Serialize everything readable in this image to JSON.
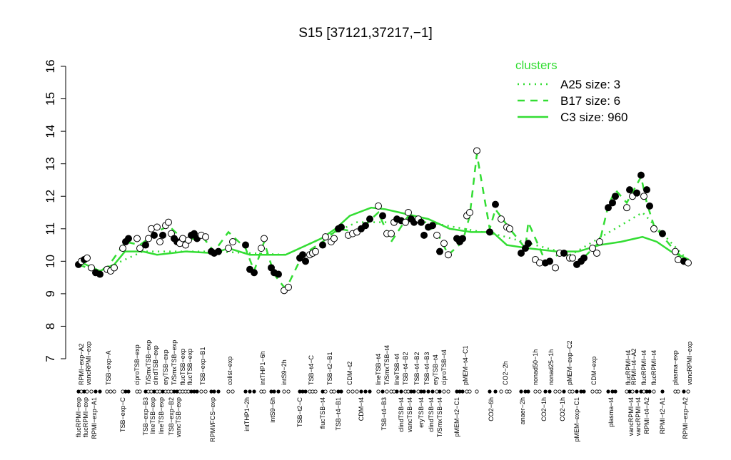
{
  "chart_data": {
    "type": "line",
    "title": "S15 [37121,37217,−1]",
    "ylim": [
      7,
      16
    ],
    "yticks": [
      7,
      8,
      9,
      10,
      11,
      12,
      13,
      14,
      15,
      16
    ],
    "xlim": [
      100,
      975
    ],
    "legend_title": "clusters",
    "legend_position": "top-right",
    "series": [
      {
        "name": "A25 size: 3",
        "color": "#33dd33",
        "dash": "dotted",
        "x": [
          110,
          140,
          200,
          300,
          400,
          500,
          600,
          700,
          800,
          900,
          965
        ],
        "values": [
          10.0,
          9.7,
          10.3,
          10.3,
          10.2,
          11.2,
          11.2,
          10.8,
          10.2,
          11.5,
          10.0
        ]
      },
      {
        "name": "B17 size: 6",
        "color": "#33dd33",
        "dash": "dashed",
        "x": [
          110,
          134,
          150,
          176,
          196,
          220,
          236,
          260,
          282,
          300,
          320,
          344,
          356,
          370,
          384,
          398,
          404,
          424,
          452,
          474,
          500,
          530,
          548,
          572,
          590,
          612,
          628,
          648,
          658,
          668,
          686,
          694,
          714,
          736,
          740,
          764,
          790,
          808,
          840,
          852,
          862,
          878,
          898,
          906,
          916,
          946,
          964
        ],
        "values": [
          9.9,
          9.7,
          9.8,
          10.6,
          10.5,
          10.9,
          11.1,
          10.6,
          10.8,
          10.3,
          10.9,
          10.4,
          9.7,
          10.6,
          9.6,
          9.2,
          9.3,
          10.2,
          10.6,
          11.0,
          10.9,
          11.5,
          10.6,
          11.4,
          11.2,
          10.9,
          10.2,
          10.6,
          11.4,
          13.3,
          11.0,
          11.6,
          11.0,
          10.4,
          11.2,
          10.0,
          10.3,
          9.9,
          10.6,
          11.7,
          12.2,
          11.8,
          12.6,
          11.8,
          11.1,
          10.3,
          10.0
        ]
      },
      {
        "name": "C3 size: 960",
        "color": "#33dd33",
        "dash": "solid",
        "x": [
          110,
          140,
          160,
          175,
          200,
          220,
          260,
          300,
          320,
          350,
          380,
          400,
          420,
          450,
          470,
          490,
          520,
          540,
          560,
          600,
          630,
          660,
          690,
          710,
          740,
          780,
          810,
          840,
          870,
          900,
          920,
          940,
          965
        ],
        "values": [
          10.0,
          9.7,
          9.9,
          10.3,
          10.3,
          10.2,
          10.3,
          10.25,
          10.4,
          10.2,
          10.2,
          10.2,
          10.4,
          10.7,
          11.0,
          11.4,
          11.65,
          11.6,
          11.5,
          11.3,
          11.0,
          10.9,
          10.9,
          10.5,
          10.4,
          10.3,
          10.3,
          10.5,
          10.6,
          10.75,
          10.6,
          10.3,
          10.05
        ]
      }
    ],
    "points": {
      "x": [
        110,
        114,
        118,
        122,
        128,
        134,
        140,
        150,
        155,
        160,
        172,
        176,
        180,
        192,
        196,
        204,
        208,
        212,
        216,
        220,
        224,
        228,
        232,
        236,
        240,
        244,
        248,
        252,
        256,
        260,
        264,
        268,
        272,
        276,
        282,
        288,
        296,
        300,
        306,
        320,
        326,
        344,
        350,
        356,
        366,
        370,
        380,
        384,
        390,
        398,
        404,
        420,
        424,
        428,
        434,
        438,
        442,
        452,
        456,
        464,
        468,
        474,
        478,
        488,
        494,
        500,
        506,
        512,
        518,
        530,
        536,
        542,
        548,
        552,
        556,
        562,
        568,
        572,
        576,
        580,
        586,
        590,
        594,
        600,
        606,
        612,
        616,
        622,
        628,
        640,
        644,
        648,
        654,
        658,
        668,
        686,
        694,
        702,
        710,
        714,
        730,
        736,
        740,
        750,
        756,
        764,
        770,
        778,
        784,
        790,
        798,
        802,
        808,
        814,
        818,
        830,
        836,
        840,
        852,
        858,
        862,
        878,
        882,
        886,
        892,
        898,
        902,
        906,
        910,
        916,
        928,
        946,
        950,
        958,
        964
      ],
      "values": [
        9.9,
        10.0,
        10.05,
        10.1,
        9.8,
        9.65,
        9.6,
        9.75,
        9.7,
        9.8,
        10.4,
        10.6,
        10.7,
        10.7,
        10.4,
        10.5,
        10.7,
        11.0,
        10.8,
        11.05,
        10.6,
        10.8,
        11.1,
        11.2,
        10.85,
        10.7,
        10.6,
        10.55,
        10.7,
        10.5,
        10.65,
        10.8,
        10.85,
        10.7,
        10.8,
        10.75,
        10.3,
        10.25,
        10.3,
        10.4,
        10.6,
        10.5,
        9.75,
        9.65,
        10.4,
        10.7,
        9.8,
        9.65,
        9.6,
        9.1,
        9.2,
        10.1,
        10.2,
        10.0,
        10.2,
        10.25,
        10.3,
        10.5,
        10.75,
        10.6,
        10.7,
        11.0,
        11.05,
        10.8,
        10.85,
        10.9,
        11.0,
        11.1,
        11.3,
        11.7,
        11.4,
        10.85,
        10.85,
        11.2,
        11.3,
        11.25,
        11.2,
        11.5,
        11.3,
        11.2,
        11.3,
        11.2,
        10.8,
        11.05,
        11.1,
        10.8,
        10.3,
        10.55,
        10.2,
        10.7,
        10.6,
        10.7,
        11.4,
        11.5,
        13.4,
        10.9,
        11.75,
        11.3,
        11.05,
        11.0,
        10.25,
        10.4,
        10.55,
        10.05,
        9.95,
        9.95,
        10.0,
        9.8,
        10.25,
        10.25,
        10.1,
        10.1,
        9.9,
        10.0,
        10.1,
        10.4,
        10.25,
        10.6,
        11.65,
        11.8,
        12.0,
        11.65,
        12.2,
        12.0,
        12.1,
        12.65,
        12.0,
        12.2,
        11.7,
        11.0,
        10.85,
        10.3,
        10.05,
        10.0,
        9.95
      ],
      "filled": [
        true,
        false,
        true,
        false,
        false,
        true,
        true,
        false,
        false,
        false,
        false,
        true,
        true,
        false,
        false,
        true,
        false,
        false,
        true,
        false,
        false,
        true,
        false,
        false,
        false,
        true,
        true,
        false,
        false,
        false,
        false,
        true,
        true,
        true,
        false,
        false,
        true,
        true,
        true,
        false,
        false,
        true,
        true,
        true,
        false,
        false,
        true,
        true,
        true,
        false,
        false,
        true,
        true,
        true,
        false,
        false,
        false,
        true,
        false,
        false,
        false,
        true,
        true,
        false,
        false,
        false,
        true,
        true,
        true,
        false,
        true,
        false,
        false,
        false,
        true,
        true,
        false,
        false,
        true,
        true,
        false,
        true,
        true,
        true,
        true,
        false,
        true,
        false,
        false,
        true,
        true,
        true,
        false,
        false,
        false,
        true,
        true,
        false,
        false,
        false,
        true,
        true,
        true,
        false,
        false,
        true,
        true,
        false,
        false,
        true,
        false,
        false,
        true,
        true,
        true,
        false,
        false,
        false,
        true,
        true,
        true,
        false,
        true,
        false,
        true,
        true,
        false,
        true,
        true,
        false,
        true,
        false,
        false,
        true,
        false
      ]
    },
    "top_labels": [
      "RPMI−exp−A2",
      "vancRPMI−exp",
      "TSB−exp−A",
      "ciproTSB−exp",
      "T/SmxTSB−exp",
      "clindTSB−exp",
      "eryTSB−exp",
      "T/SmxTSB−exp",
      "flucTSB−exp",
      "flucTSB−exp",
      "TSB−exp−B1",
      "colist−exp",
      "intTHP1−6h",
      "intS9−2h",
      "TSB−t4−C",
      "TSB−t2−B1",
      "CDM−t2",
      "lineTSB−t4",
      "T/SmxTSB−t4",
      "lineTSB−t4",
      "TSB−t4−B2",
      "TSB−t4−B2",
      "TSB−t4−B3",
      "eryTSB−t4",
      "ciproTSB−t4",
      "pMEM−t4−C1",
      "CO2−2h",
      "nonad50−1h",
      "nonad25−1h",
      "pMEM−exp−C2",
      "CDM−exp",
      "flucRPMI−t4",
      "RPMI−t4−A2",
      "flucRPMI−t4",
      "flucRPMI−t4",
      "plasma−exp",
      "vancRPMI−exp"
    ],
    "top_labels_x": [
      114,
      124,
      152,
      192,
      208,
      218,
      232,
      244,
      256,
      266,
      284,
      322,
      368,
      398,
      436,
      462,
      490,
      530,
      542,
      556,
      568,
      584,
      598,
      610,
      622,
      652,
      708,
      750,
      772,
      798,
      832,
      880,
      888,
      902,
      916,
      946,
      966
    ],
    "bottom_labels": [
      "flucRPMI−exp",
      "flucRPMI−exp",
      "RPMI−exp−A1",
      "TSB−exp−C",
      "TSB−exp−B3",
      "lineTSB−exp",
      "lineTSB−exp",
      "TSB−exp−B2",
      "vancTSB−exp",
      "RPMI/FCS−exp",
      "intTHP1−2h",
      "intS9−6h",
      "TSB−t2−C",
      "flucTSB−t4",
      "TSB−t4−B1",
      "CDM−t4",
      "TSB−t4−B3",
      "clindTSB−t4",
      "vancTSB−t4",
      "eryTSB−t4",
      "clindTSB−t4",
      "T/SmxTSB−t4",
      "pMEM−t2−C1",
      "CO2−6h",
      "anaer−2h",
      "CO2−1h",
      "CO2−1h",
      "pMEM−exp−C1",
      "plasma−t4",
      "vancRPMI−t4",
      "vancRPMI−t4",
      "RPMI−t4−A2",
      "RPMI−t2−A1",
      "RPMI−exp−A2"
    ],
    "bottom_labels_x": [
      110,
      120,
      132,
      172,
      204,
      214,
      226,
      240,
      250,
      298,
      346,
      382,
      420,
      452,
      474,
      506,
      538,
      562,
      574,
      590,
      604,
      616,
      640,
      688,
      732,
      762,
      788,
      808,
      856,
      884,
      894,
      906,
      928,
      960
    ]
  }
}
